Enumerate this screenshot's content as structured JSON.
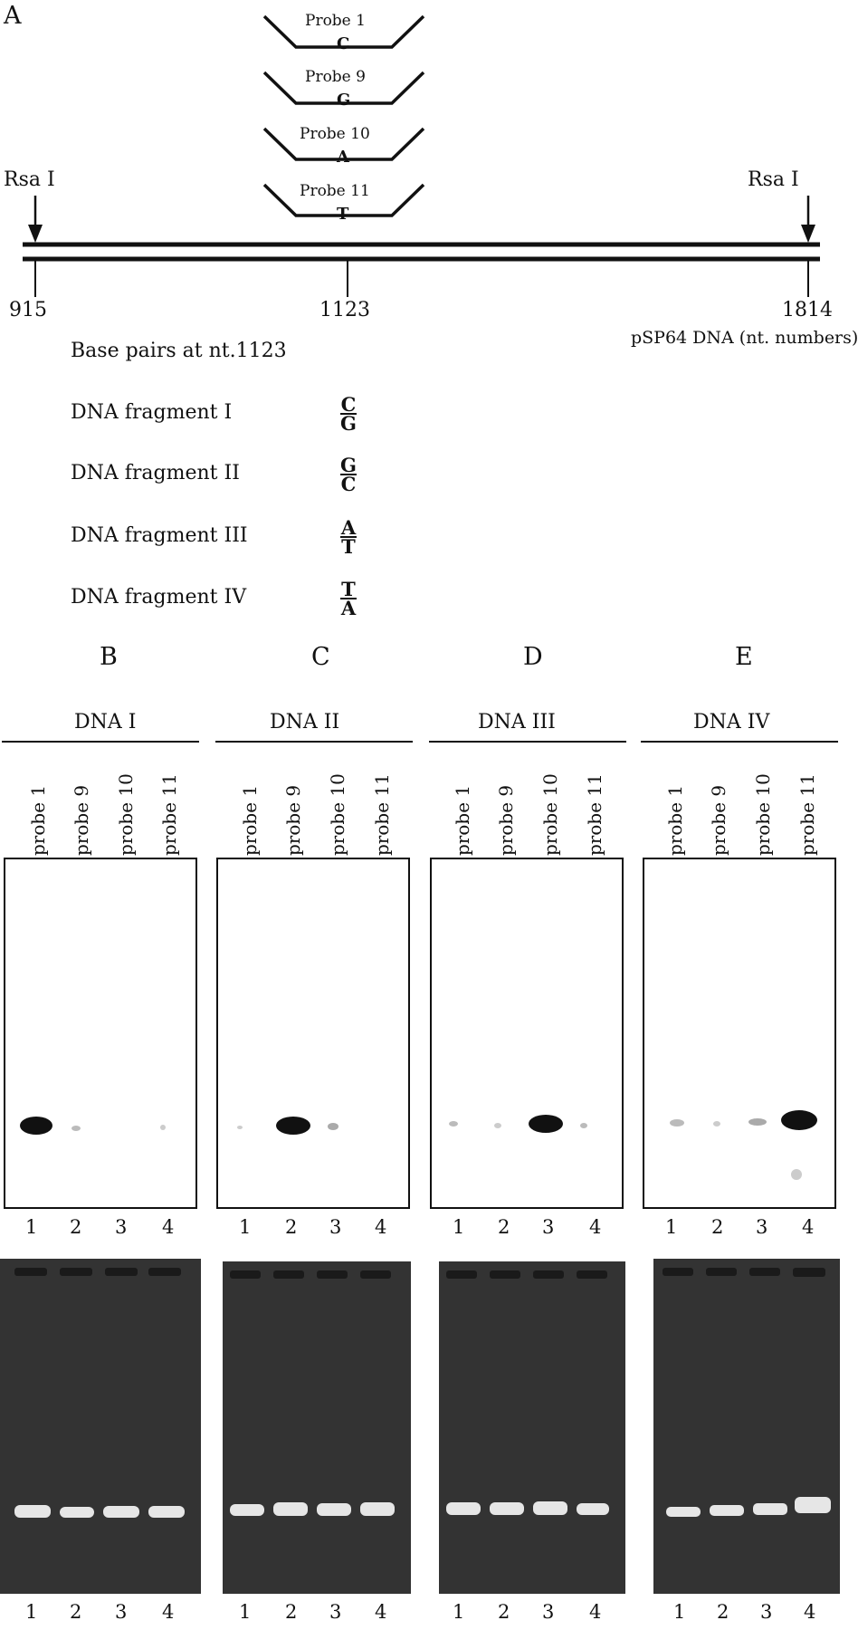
{
  "panelA": {
    "letter": "A",
    "probes": [
      {
        "name": "Probe 1",
        "base": "C"
      },
      {
        "name": "Probe 9",
        "base": "G"
      },
      {
        "name": "Probe 10",
        "base": "A"
      },
      {
        "name": "Probe 11",
        "base": "T"
      }
    ],
    "rsa_left": "Rsa I",
    "rsa_right": "Rsa I",
    "positions": [
      "915",
      "1123",
      "1814"
    ],
    "dna_caption": "pSP64 DNA (nt. numbers)",
    "base_pairs_title": "Base pairs at nt.1123",
    "fragments": [
      {
        "label": "DNA fragment I",
        "top": "C",
        "bottom": "G"
      },
      {
        "label": "DNA fragment II",
        "top": "G",
        "bottom": "C"
      },
      {
        "label": "DNA fragment III",
        "top": "A",
        "bottom": "T"
      },
      {
        "label": "DNA fragment IV",
        "top": "T",
        "bottom": "A"
      }
    ]
  },
  "panels": [
    {
      "letter": "B",
      "title": "DNA I"
    },
    {
      "letter": "C",
      "title": "DNA II"
    },
    {
      "letter": "D",
      "title": "DNA III"
    },
    {
      "letter": "E",
      "title": "DNA IV"
    }
  ],
  "lane_probes": [
    "probe 1",
    "probe 9",
    "probe 10",
    "probe 11"
  ],
  "lane_numbers": [
    "1",
    "2",
    "3",
    "4"
  ],
  "colors": {
    "ink": "#111111",
    "gel": "#333333",
    "gel_band": "#e6e6e6"
  }
}
